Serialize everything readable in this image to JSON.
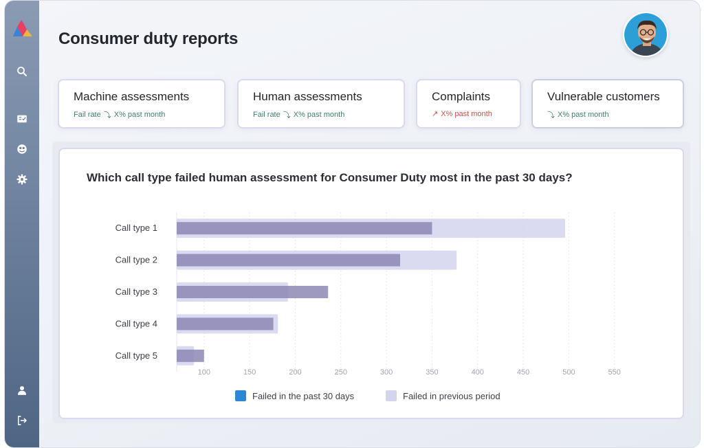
{
  "app": {
    "page_title": "Consumer duty reports"
  },
  "sidebar": {
    "items": [
      {
        "icon": "search-icon",
        "label": "Search"
      },
      {
        "icon": "checklist-icon",
        "label": "Assessments"
      },
      {
        "icon": "dashboard-icon",
        "label": "Dashboard"
      },
      {
        "icon": "gear-icon",
        "label": "Settings"
      },
      {
        "icon": "user-icon",
        "label": "Profile"
      },
      {
        "icon": "logout-icon",
        "label": "Log out"
      }
    ]
  },
  "cards": [
    {
      "title": "Machine assessments",
      "sub_prefix": "Fail rate",
      "trend": "down",
      "sub": "X% past month"
    },
    {
      "title": "Human assessments",
      "sub_prefix": "Fail rate",
      "trend": "down",
      "sub": "X% past month"
    },
    {
      "title": "Complaints",
      "sub_prefix": "",
      "trend": "up",
      "sub": "X% past month"
    },
    {
      "title": "Vulnerable customers",
      "sub_prefix": "",
      "trend": "down",
      "sub": "X% past month"
    }
  ],
  "colors": {
    "trend_down": "#3e7d6e",
    "trend_up": "#c0524b",
    "bar_current": "#8c87b4",
    "bar_previous": "#d4d3ee",
    "legend_current": "#2f86d1",
    "legend_previous": "#d4d5ec"
  },
  "chart_data": {
    "type": "bar",
    "orientation": "horizontal",
    "title": "Which call type failed human assessment for Consumer Duty most in the past 30 days?",
    "categories": [
      "Call type 1",
      "Call type 2",
      "Call type 3",
      "Call type 4",
      "Call type 5"
    ],
    "series": [
      {
        "name": "Failed in the past 30 days",
        "values": [
          350,
          315,
          236,
          176,
          100
        ]
      },
      {
        "name": "Failed in previous period",
        "values": [
          496,
          377,
          192,
          181,
          89
        ]
      }
    ],
    "x_ticks": [
      100,
      150,
      200,
      250,
      300,
      350,
      400,
      450,
      500,
      550
    ],
    "xlim": [
      70,
      560
    ],
    "grid": true,
    "legend_position": "bottom"
  }
}
